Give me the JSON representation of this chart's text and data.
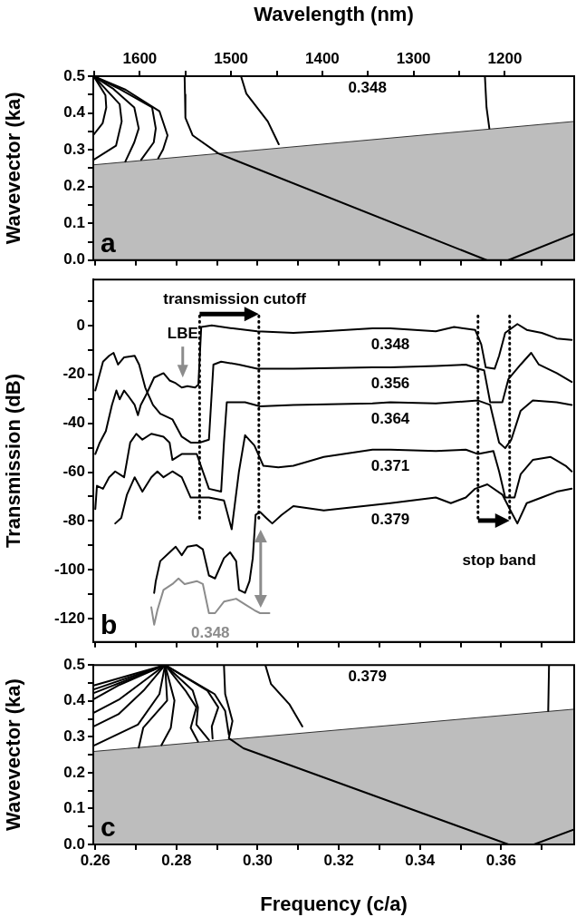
{
  "chart_data": [
    {
      "type": "line",
      "x2label": "Wavelength (nm)",
      "ylabel": "Wavevector (ka)",
      "xlim": [
        0.2595,
        0.378
      ],
      "x2lim": [
        1651,
        1124
      ],
      "ylim": [
        0,
        0.5
      ],
      "xticks": [
        0.26,
        0.27,
        0.28,
        0.29,
        0.3,
        0.31,
        0.32,
        0.33,
        0.34,
        0.35,
        0.36,
        0.37
      ],
      "x2ticks": [
        {
          "value": 1650,
          "label": null
        },
        1600,
        {
          "value": 1550,
          "label": null
        },
        1500,
        {
          "value": 1450,
          "label": null
        },
        1400,
        {
          "value": 1350,
          "label": null
        },
        1300,
        {
          "value": 1250,
          "label": null
        },
        1200
      ],
      "yticks": [
        {
          "value": 0,
          "label": "0.0"
        },
        {
          "value": 0.05,
          "label": null
        },
        0.1,
        {
          "value": 0.15,
          "label": null
        },
        0.2,
        {
          "value": 0.25,
          "label": null
        },
        0.3,
        {
          "value": 0.35,
          "label": null
        },
        0.4,
        {
          "value": 0.45,
          "label": null
        },
        0.5
      ],
      "tick_labels": "y",
      "grid": false,
      "legend": false,
      "marker": "none",
      "annotations": [
        "0.348",
        "a"
      ],
      "series": [
        {
          "type": "area",
          "color": "#bdbdbd",
          "x": [
            0.2595,
            0.378
          ],
          "values": [
            0.259,
            0.377
          ]
        },
        {
          "color": "#000000",
          "x": [
            0.2596,
            0.2625,
            0.2627,
            0.2618,
            0.2596
          ],
          "values": [
            0.5,
            0.448,
            0.415,
            0.372,
            0.341
          ]
        },
        {
          "color": "#000000",
          "x": [
            0.2596,
            0.266,
            0.2665,
            0.2651,
            0.2596
          ],
          "values": [
            0.5,
            0.424,
            0.377,
            0.311,
            0.273
          ]
        },
        {
          "color": "#000000",
          "x": [
            0.2596,
            0.2645,
            0.2696,
            0.2707,
            0.2696,
            0.2674
          ],
          "values": [
            0.5,
            0.465,
            0.415,
            0.358,
            0.32,
            0.268
          ]
        },
        {
          "color": "#000000",
          "x": [
            0.2596,
            0.266,
            0.274,
            0.2749,
            0.2744,
            0.2713
          ],
          "values": [
            0.5,
            0.465,
            0.415,
            0.358,
            0.32,
            0.273
          ]
        },
        {
          "color": "#000000",
          "x": [
            0.2596,
            0.2675,
            0.2758,
            0.2778,
            0.2767,
            0.2755
          ],
          "values": [
            0.5,
            0.463,
            0.405,
            0.339,
            0.301,
            0.277
          ]
        },
        {
          "color": "#000000",
          "x": [
            0.282,
            0.2821,
            0.2822,
            0.284,
            0.2903,
            0.3564
          ],
          "values": [
            0.5,
            0.45,
            0.387,
            0.339,
            0.29,
            0
          ]
        },
        {
          "color": "#000000",
          "x": [
            0.2959,
            0.2972,
            0.3025,
            0.3052
          ],
          "values": [
            0.5,
            0.453,
            0.377,
            0.315
          ]
        },
        {
          "color": "#000000",
          "x": [
            0.356,
            0.3564,
            0.3571
          ],
          "values": [
            0.5,
            0.415,
            0.358
          ]
        },
        {
          "color": "#000000",
          "x": [
            0.3618,
            0.378
          ],
          "values": [
            0,
            0.072
          ]
        }
      ]
    },
    {
      "type": "line",
      "ylabel": "Transmission (dB)",
      "xlim": [
        0.2595,
        0.378
      ],
      "ylim": [
        -129.5,
        18.8
      ],
      "xticks": [
        0.26,
        0.27,
        0.28,
        0.29,
        0.3,
        0.31,
        0.32,
        0.33,
        0.34,
        0.35,
        0.36,
        0.37
      ],
      "yticks": [
        {
          "value": 10,
          "label": null
        },
        0,
        {
          "value": -10,
          "label": null
        },
        -20,
        {
          "value": -30,
          "label": null
        },
        -40,
        {
          "value": -50,
          "label": null
        },
        -60,
        {
          "value": -70,
          "label": null
        },
        -80,
        {
          "value": -90,
          "label": null
        },
        -100,
        {
          "value": -110,
          "label": null
        },
        -120
      ],
      "tick_labels": "y",
      "grid": false,
      "legend": false,
      "marker": "none",
      "annotations": [
        "transmission cutoff",
        "LBE",
        "stop band",
        "b"
      ],
      "ref_lines": [
        {
          "axis": "x",
          "value": 0.2857,
          "line_style": "dotted",
          "color": "#000000"
        },
        {
          "axis": "x",
          "value": 0.3003,
          "line_style": "dotted",
          "color": "#000000"
        },
        {
          "axis": "x",
          "value": 0.3543,
          "line_style": "dotted",
          "color": "#000000"
        },
        {
          "axis": "x",
          "value": 0.3621,
          "line_style": "dotted",
          "color": "#000000"
        }
      ],
      "series": [
        {
          "name": "0.348",
          "color": "#000000",
          "x": [
            0.26,
            0.2611,
            0.2626,
            0.2641,
            0.2652,
            0.266,
            0.2671,
            0.2682,
            0.2697,
            0.2705,
            0.2712,
            0.2727,
            0.2745,
            0.2768,
            0.2783,
            0.2798,
            0.2813,
            0.2827,
            0.2846,
            0.2854,
            0.2861,
            0.2887,
            0.2939,
            0.2999,
            0.3088,
            0.3163,
            0.3283,
            0.3327,
            0.3439,
            0.3484,
            0.3536,
            0.3551,
            0.3562,
            0.3584,
            0.3595,
            0.361,
            0.364,
            0.3663,
            0.37,
            0.3737,
            0.3774
          ],
          "values": [
            -52.6,
            -47.9,
            -43.2,
            -32.5,
            -26.6,
            -30.2,
            -26.6,
            -29,
            -32.5,
            -36.7,
            -32.5,
            -27.8,
            -21.3,
            -19.5,
            -22.5,
            -23.6,
            -25.4,
            -24.8,
            -25.4,
            -24.2,
            -0.6,
            0,
            -1.2,
            -2.4,
            -3,
            -2.4,
            -1.2,
            -1.2,
            -2.4,
            -0.6,
            -1.8,
            -7.7,
            -17.1,
            -17.7,
            -12.4,
            -3,
            0.6,
            -1.8,
            -3,
            -5.3,
            -5.9
          ]
        },
        {
          "name": "0.356",
          "color": "#000000",
          "x": [
            0.26,
            0.2619,
            0.2634,
            0.2645,
            0.2656,
            0.2671,
            0.2697,
            0.2708,
            0.2723,
            0.2742,
            0.276,
            0.279,
            0.2813,
            0.2835,
            0.2857,
            0.288,
            0.2891,
            0.291,
            0.2954,
            0.2999,
            0.3088,
            0.3283,
            0.3327,
            0.3439,
            0.3513,
            0.3543,
            0.3558,
            0.3573,
            0.3603,
            0.3618,
            0.3648,
            0.3674,
            0.3693,
            0.3737,
            0.3774
          ],
          "values": [
            -26.6,
            -14.8,
            -12.4,
            -11.2,
            -16,
            -13,
            -12.4,
            -16,
            -25.4,
            -32.5,
            -36.1,
            -38.4,
            -45.5,
            -47.9,
            -47.9,
            -46.7,
            -16,
            -14.8,
            -16,
            -17.7,
            -17.7,
            -17.1,
            -17.1,
            -16.6,
            -16,
            -17.7,
            -18.3,
            -31.4,
            -31.4,
            -21.9,
            -16,
            -11.2,
            -16,
            -19.5,
            -23.1
          ]
        },
        {
          "name": "0.364",
          "color": "#000000",
          "x": [
            0.26,
            0.2604,
            0.2619,
            0.2634,
            0.2649,
            0.2671,
            0.2686,
            0.2701,
            0.2716,
            0.2738,
            0.2768,
            0.2783,
            0.279,
            0.2813,
            0.285,
            0.2865,
            0.288,
            0.291,
            0.2917,
            0.2924,
            0.2969,
            0.3006,
            0.3088,
            0.3283,
            0.3327,
            0.3439,
            0.3543,
            0.3573,
            0.3595,
            0.361,
            0.3625,
            0.3648,
            0.3678,
            0.3737,
            0.3774
          ],
          "values": [
            -75.1,
            -65.6,
            -66.8,
            -62.1,
            -59.7,
            -62.1,
            -47.9,
            -44.3,
            -46.7,
            -44.3,
            -45.5,
            -47.9,
            -55,
            -52.6,
            -52.6,
            -59.7,
            -66.8,
            -68,
            -47.9,
            -31.4,
            -31.4,
            -33.1,
            -32.5,
            -31.9,
            -31.4,
            -31.9,
            -30.7,
            -32.5,
            -47.9,
            -50.2,
            -46.7,
            -34.9,
            -30.7,
            -31.4,
            -32.5
          ]
        },
        {
          "name": "0.371",
          "color": "#000000",
          "x": [
            0.2649,
            0.2664,
            0.2678,
            0.2697,
            0.2716,
            0.2738,
            0.2753,
            0.2768,
            0.279,
            0.2813,
            0.2835,
            0.288,
            0.2917,
            0.2936,
            0.2954,
            0.2969,
            0.2992,
            0.3014,
            0.3051,
            0.3088,
            0.3163,
            0.3283,
            0.3327,
            0.3439,
            0.3513,
            0.3543,
            0.3581,
            0.3595,
            0.361,
            0.3633,
            0.3648,
            0.3678,
            0.3722,
            0.3759,
            0.3774
          ],
          "values": [
            -81,
            -78.7,
            -69.2,
            -62.1,
            -68,
            -62.1,
            -59.7,
            -62.1,
            -59.7,
            -62.1,
            -70.4,
            -70.4,
            -71.6,
            -83.4,
            -59.7,
            -44.9,
            -49.1,
            -57.4,
            -58,
            -57.4,
            -53.8,
            -50.8,
            -50.8,
            -51.4,
            -50.8,
            -52.6,
            -51.4,
            -59.7,
            -70.4,
            -70.4,
            -60.9,
            -55,
            -53.8,
            -57.4,
            -59.7
          ]
        },
        {
          "name": "0.379",
          "color": "#000000",
          "x": [
            0.2745,
            0.2749,
            0.276,
            0.2783,
            0.2798,
            0.2813,
            0.2827,
            0.285,
            0.2865,
            0.288,
            0.2895,
            0.2917,
            0.2932,
            0.2947,
            0.2954,
            0.2969,
            0.298,
            0.2988,
            0.2995,
            0.3006,
            0.3021,
            0.3036,
            0.3059,
            0.3088,
            0.3163,
            0.3327,
            0.3439,
            0.3476,
            0.3513,
            0.3536,
            0.3566,
            0.3603,
            0.3625,
            0.364,
            0.3663,
            0.37,
            0.3737,
            0.3774
          ],
          "values": [
            -109.4,
            -104.6,
            -96.4,
            -92.8,
            -90.5,
            -94,
            -90.5,
            -89.9,
            -91.6,
            -102.3,
            -103.5,
            -95.2,
            -92.8,
            -96.4,
            -108.2,
            -109.4,
            -104.6,
            -95.2,
            -77.5,
            -76.3,
            -78.7,
            -81,
            -77.5,
            -73.9,
            -75.7,
            -72.7,
            -70.4,
            -72.7,
            -70.4,
            -66.8,
            -65,
            -69.2,
            -76.3,
            -81,
            -72.7,
            -70.4,
            -68,
            -66.8
          ]
        },
        {
          "name": "0.348",
          "color": "#8c8c8c",
          "x": [
            0.2738,
            0.2745,
            0.2753,
            0.2768,
            0.279,
            0.2805,
            0.282,
            0.285,
            0.2865,
            0.288,
            0.2895,
            0.2917,
            0.2947,
            0.2969,
            0.2992,
            0.3006,
            0.3029
          ],
          "values": [
            -115.3,
            -122.4,
            -116.5,
            -108.2,
            -105.8,
            -103.5,
            -105.8,
            -104.6,
            -105.8,
            -117.7,
            -117.7,
            -113,
            -111.8,
            -114.1,
            -116.5,
            -117.7,
            -117.7
          ]
        }
      ]
    },
    {
      "type": "line",
      "xlabel": "Frequency (c/a)",
      "ylabel": "Wavevector (ka)",
      "xlim": [
        0.2595,
        0.378
      ],
      "ylim": [
        0,
        0.5
      ],
      "xticks": [
        0.26,
        {
          "value": 0.27,
          "label": null
        },
        0.28,
        {
          "value": 0.29,
          "label": null
        },
        {
          "value": 0.3,
          "label": "0.30"
        },
        {
          "value": 0.31,
          "label": null
        },
        0.32,
        {
          "value": 0.33,
          "label": null
        },
        0.34,
        {
          "value": 0.35,
          "label": null
        },
        0.36,
        {
          "value": 0.37,
          "label": null
        }
      ],
      "yticks": [
        {
          "value": 0,
          "label": "0.0"
        },
        {
          "value": 0.05,
          "label": null
        },
        0.1,
        {
          "value": 0.15,
          "label": null
        },
        0.2,
        {
          "value": 0.25,
          "label": null
        },
        0.3,
        {
          "value": 0.35,
          "label": null
        },
        0.4,
        {
          "value": 0.45,
          "label": null
        },
        0.5
      ],
      "grid": false,
      "legend": false,
      "marker": "none",
      "annotations": [
        "0.379",
        "c"
      ],
      "series": [
        {
          "type": "area",
          "color": "#bdbdbd",
          "x": [
            0.2595,
            0.378
          ],
          "values": [
            0.259,
            0.377
          ]
        },
        {
          "color": "#000000",
          "x": [
            0.2772,
            0.2596
          ],
          "values": [
            0.5,
            0.443
          ]
        },
        {
          "color": "#000000",
          "x": [
            0.2772,
            0.2596
          ],
          "values": [
            0.5,
            0.432
          ]
        },
        {
          "color": "#000000",
          "x": [
            0.2772,
            0.2596
          ],
          "values": [
            0.5,
            0.422
          ]
        },
        {
          "color": "#000000",
          "x": [
            0.2772,
            0.266,
            0.2596
          ],
          "values": [
            0.5,
            0.445,
            0.405
          ]
        },
        {
          "color": "#000000",
          "x": [
            0.2772,
            0.2705,
            0.266,
            0.2596
          ],
          "values": [
            0.5,
            0.443,
            0.405,
            0.367
          ]
        },
        {
          "color": "#000000",
          "x": [
            0.2772,
            0.2719,
            0.2657,
            0.2596
          ],
          "values": [
            0.5,
            0.429,
            0.363,
            0.329
          ]
        },
        {
          "color": "#000000",
          "x": [
            0.2772,
            0.2758,
            0.2705,
            0.2596
          ],
          "values": [
            0.5,
            0.419,
            0.334,
            0.275
          ]
        },
        {
          "color": "#000000",
          "x": [
            0.2772,
            0.2777,
            0.2718,
            0.2707
          ],
          "values": [
            0.5,
            0.401,
            0.325,
            0.27
          ]
        },
        {
          "color": "#000000",
          "x": [
            0.2772,
            0.2795,
            0.2786,
            0.2763
          ],
          "values": [
            0.5,
            0.401,
            0.325,
            0.277
          ]
        },
        {
          "color": "#000000",
          "x": [
            0.2772,
            0.2822,
            0.2849,
            0.2835,
            0.2853
          ],
          "values": [
            0.5,
            0.429,
            0.382,
            0.325,
            0.287
          ]
        },
        {
          "color": "#000000",
          "x": [
            0.2772,
            0.284,
            0.2853,
            0.2849,
            0.288
          ],
          "values": [
            0.5,
            0.429,
            0.382,
            0.334,
            0.291
          ]
        },
        {
          "color": "#000000",
          "x": [
            0.2772,
            0.2876,
            0.2903,
            0.2887,
            0.2889
          ],
          "values": [
            0.5,
            0.429,
            0.382,
            0.329,
            0.295
          ]
        },
        {
          "color": "#000000",
          "x": [
            0.2772,
            0.2894,
            0.292,
            0.2929
          ],
          "values": [
            0.5,
            0.419,
            0.372,
            0.306
          ]
        },
        {
          "color": "#000000",
          "x": [
            0.2917,
            0.292,
            0.2938,
            0.2929,
            0.2965,
            0.3618
          ],
          "values": [
            0.5,
            0.419,
            0.344,
            0.296,
            0.268,
            0
          ]
        },
        {
          "color": "#000000",
          "x": [
            0.3019,
            0.3033,
            0.3078,
            0.311
          ],
          "values": [
            0.5,
            0.447,
            0.391,
            0.329
          ]
        },
        {
          "color": "#000000",
          "x": [
            0.3718,
            0.3716
          ],
          "values": [
            0.5,
            0.372
          ]
        },
        {
          "color": "#000000",
          "x": [
            0.3681,
            0.378
          ],
          "values": [
            0,
            0.042
          ]
        }
      ]
    }
  ]
}
